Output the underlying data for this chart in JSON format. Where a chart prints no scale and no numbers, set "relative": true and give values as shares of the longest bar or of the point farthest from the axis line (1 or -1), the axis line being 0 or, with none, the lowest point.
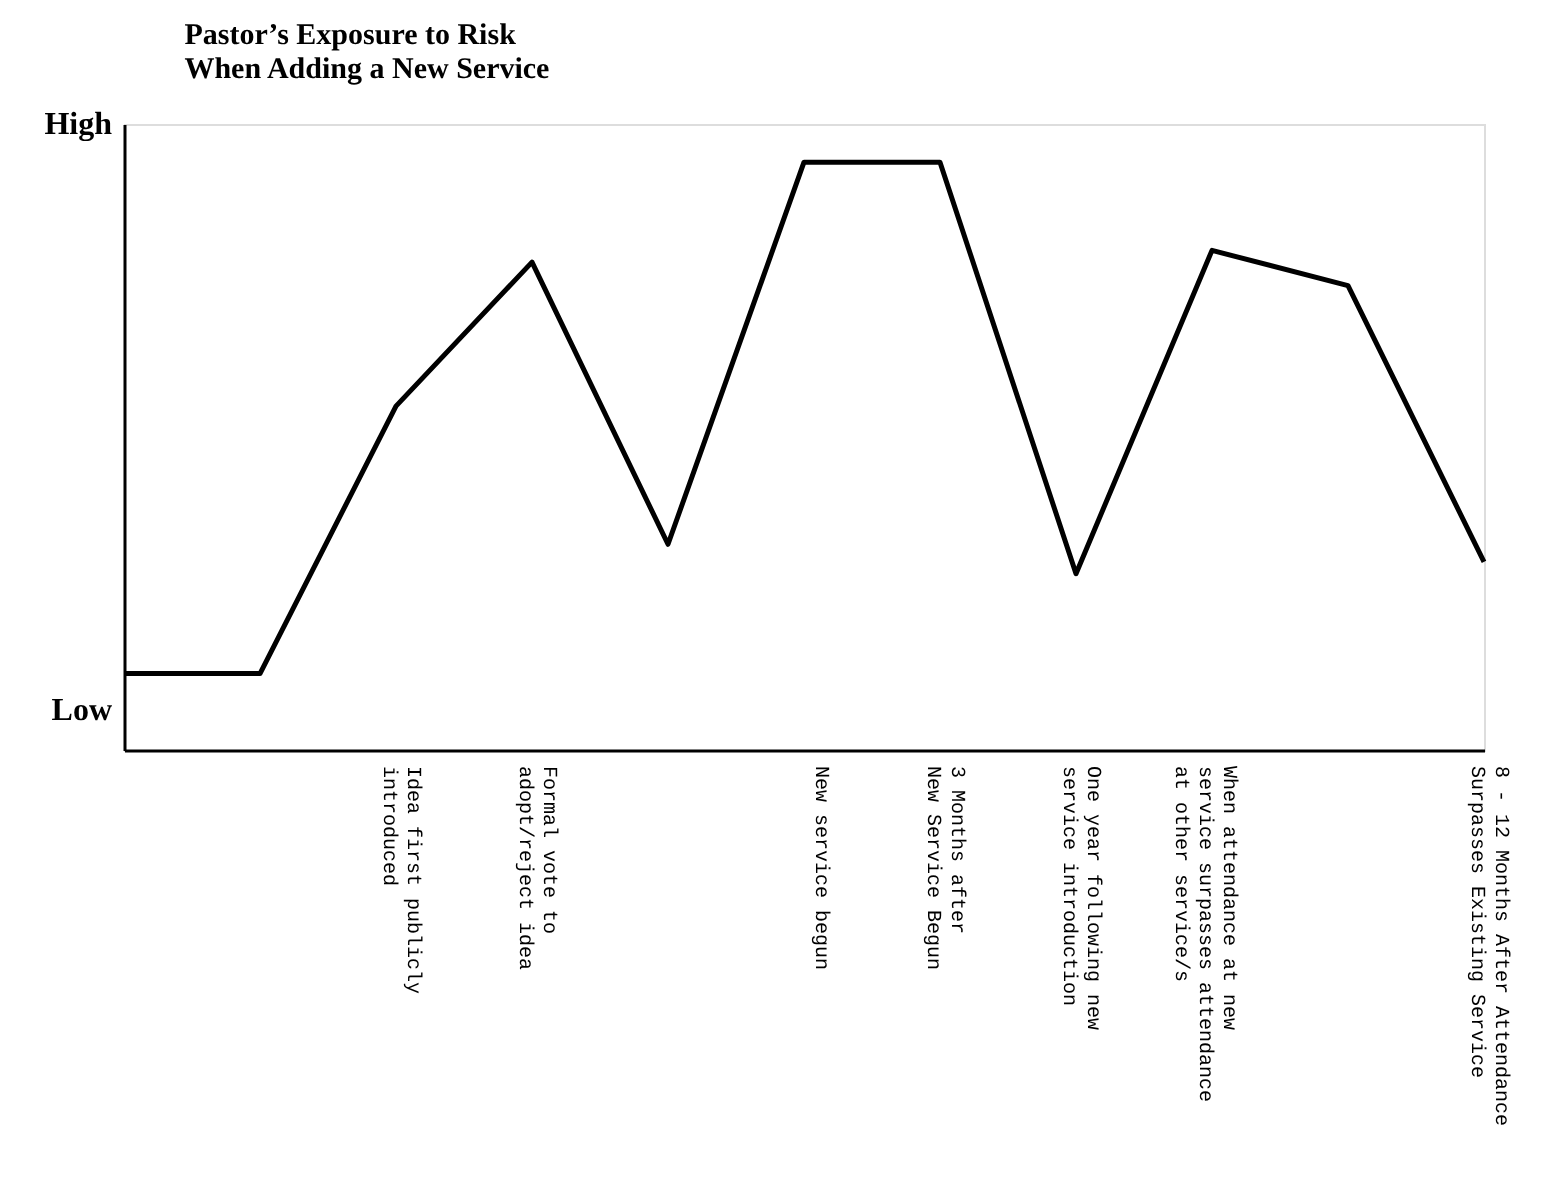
{
  "chart_data": {
    "type": "line",
    "title": "Pastor’s Exposure to Risk\nWhen Adding a New Service",
    "categories": [
      null,
      null,
      "Idea first publicly\nintroduced",
      "Formal vote to\nadopt/reject idea",
      null,
      "New service begun",
      "3 Months after\nNew Service Begun",
      "One year following new\nservice introduction",
      "When attendance at new\nservice surpasses attendance\nat other service/s",
      null,
      "8 - 12 Months After Attendance\nSurpasses Existing Service"
    ],
    "values": [
      0.13,
      0.13,
      0.585,
      0.83,
      0.35,
      1,
      1,
      0.3,
      0.85,
      0.79,
      0.32
    ],
    "color": "#000000",
    "relative": true,
    "annotations": [
      "High",
      "Low"
    ]
  }
}
